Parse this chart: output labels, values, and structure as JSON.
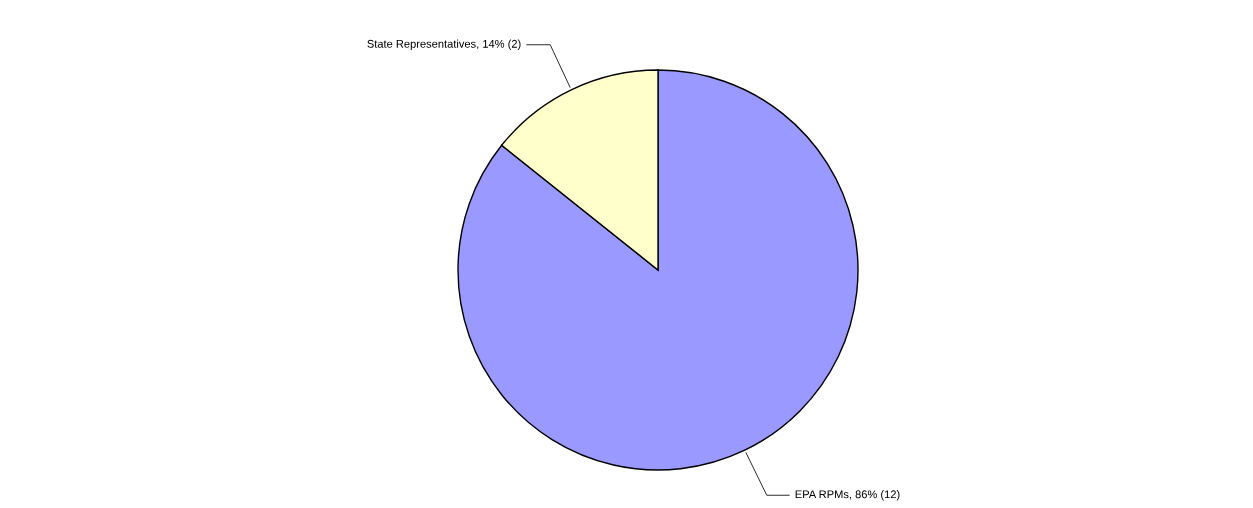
{
  "chart_data": {
    "type": "pie",
    "categories": [
      "EPA RPMs",
      "State Representatives"
    ],
    "values": [
      12,
      2
    ],
    "value_labels": [
      "86% (12)",
      "14% (2)"
    ],
    "colors": [
      "#9999ff",
      "#ffffcc"
    ]
  }
}
